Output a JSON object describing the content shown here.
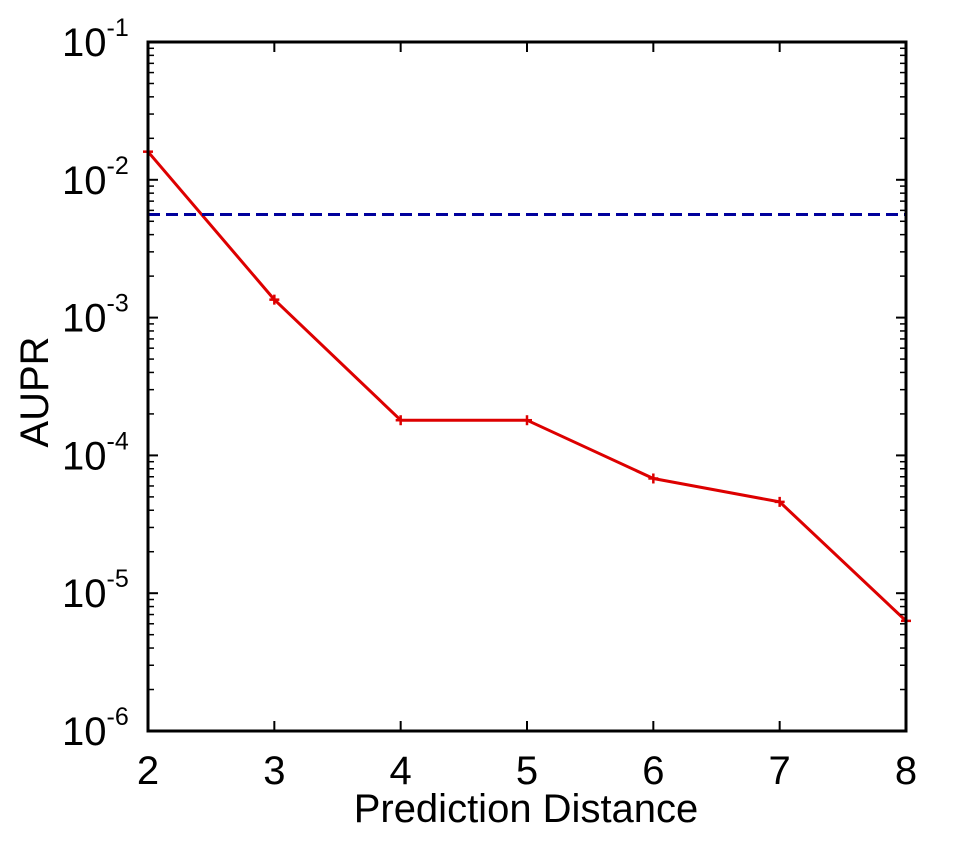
{
  "chart_data": {
    "type": "line",
    "title": "",
    "xlabel": "Prediction Distance",
    "ylabel": "AUPR",
    "xlim": [
      2,
      8
    ],
    "ylim": [
      1e-06,
      0.1
    ],
    "yscale": "log",
    "grid": false,
    "legend": "none",
    "x_ticks": [
      {
        "value": 2,
        "label": "2"
      },
      {
        "value": 3,
        "label": "3"
      },
      {
        "value": 4,
        "label": "4"
      },
      {
        "value": 5,
        "label": "5"
      },
      {
        "value": 6,
        "label": "6"
      },
      {
        "value": 7,
        "label": "7"
      },
      {
        "value": 8,
        "label": "8"
      }
    ],
    "y_ticks": [
      {
        "value": 0.1,
        "base": "10",
        "exp": "-1"
      },
      {
        "value": 0.01,
        "base": "10",
        "exp": "-2"
      },
      {
        "value": 0.001,
        "base": "10",
        "exp": "-3"
      },
      {
        "value": 0.0001,
        "base": "10",
        "exp": "-4"
      },
      {
        "value": 1e-05,
        "base": "10",
        "exp": "-5"
      },
      {
        "value": 1e-06,
        "base": "10",
        "exp": "-6"
      }
    ],
    "series": [
      {
        "color": "#dd0000",
        "style": "solid",
        "marker": "plus",
        "x": [
          2,
          3,
          4,
          5,
          6,
          7,
          8
        ],
        "y": [
          0.016,
          0.00135,
          0.00018,
          0.00018,
          6.8e-05,
          4.6e-05,
          6.3e-06
        ]
      },
      {
        "color": "#00009c",
        "style": "dashed",
        "marker": "none",
        "x": [
          2,
          8
        ],
        "y": [
          0.0056,
          0.0056
        ]
      }
    ]
  }
}
